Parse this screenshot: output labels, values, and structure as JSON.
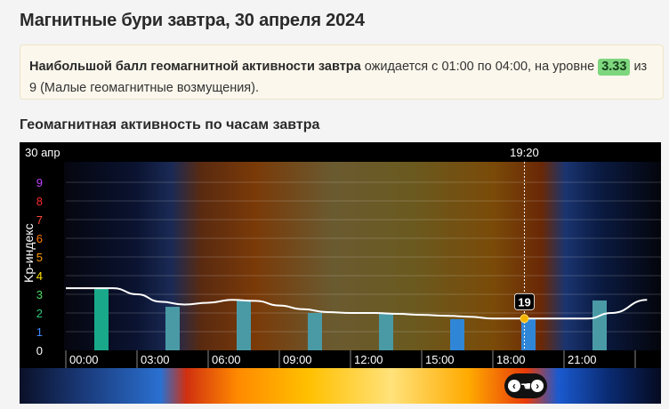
{
  "page": {
    "title": "Магнитные бури завтра, 30 апреля 2024"
  },
  "summary": {
    "bold_text": "Наибольшой балл геомагнитной активности завтра",
    "text_before_value": " ожидается с 01:00 по 04:00, на уровне ",
    "kp_value": "3.33",
    "text_after_value": " из 9 (Малые геомагнитные возмущения)."
  },
  "section": {
    "title": "Геомагнитная активность по часам завтра"
  },
  "chart": {
    "date_label": "30 апр",
    "current_time_label": "19:20",
    "current_value_label": "19",
    "y_axis_title": "Kp-индекс"
  },
  "chart_data": {
    "type": "bar",
    "ylabel": "Kp-индекс",
    "ylim": [
      0,
      9
    ],
    "y_ticks": [
      "0",
      "1",
      "2",
      "3",
      "4",
      "5",
      "6",
      "7",
      "8",
      "9"
    ],
    "y_tick_colors": [
      "#ffffff",
      "#3d8bff",
      "#2ec47a",
      "#4cd964",
      "#ffe100",
      "#ff9a00",
      "#ff7a00",
      "#ff4a3a",
      "#ff2a2a",
      "#c040ff"
    ],
    "categories": [
      "00:00",
      "03:00",
      "06:00",
      "09:00",
      "12:00",
      "15:00",
      "18:00",
      "21:00"
    ],
    "values": [
      3.33,
      2.33,
      2.67,
      2.0,
      2.0,
      1.67,
      1.67,
      2.67
    ],
    "bar_colors": [
      "#1aa88a",
      "#4a9aa6",
      "#4a9aa6",
      "#4a9aa6",
      "#4a9aa6",
      "#2f86d6",
      "#2f86d6",
      "#4a9aa6"
    ],
    "trend_line": {
      "hours": [
        0,
        1,
        2,
        3,
        4,
        5,
        6,
        7,
        8,
        9,
        10,
        11,
        12,
        13,
        14,
        15,
        16,
        17,
        18,
        19,
        20,
        21,
        22,
        23,
        24.5
      ],
      "values": [
        3.33,
        3.33,
        3.33,
        3.0,
        2.6,
        2.45,
        2.55,
        2.7,
        2.65,
        2.4,
        2.2,
        2.05,
        2.0,
        2.0,
        1.95,
        1.9,
        1.85,
        1.8,
        1.7,
        1.7,
        1.7,
        1.7,
        1.7,
        2.0,
        2.7
      ]
    },
    "current_hour": 19.33
  },
  "colors": {
    "accent_badge": "#7ed67e",
    "now_marker": "#f4b400"
  }
}
